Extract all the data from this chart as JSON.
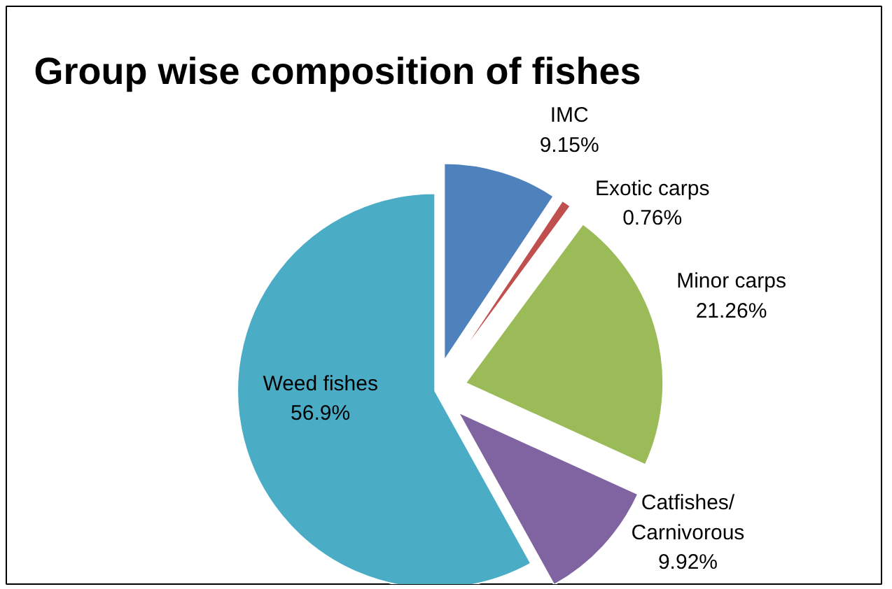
{
  "chart_data": {
    "type": "pie",
    "title": "Group wise composition of fishes",
    "categories": [
      "IMC",
      "Exotic carps",
      "Minor carps",
      "Catfishes/ Carnivorous",
      "Weed fishes"
    ],
    "values": [
      9.15,
      0.76,
      21.26,
      9.92,
      56.9
    ],
    "value_labels": [
      "9.15%",
      "0.76%",
      "21.26%",
      "9.92%",
      "56.9%"
    ],
    "colors": [
      "#4f81bd",
      "#c0504d",
      "#9bbb59",
      "#8064a2",
      "#4bacc6"
    ]
  }
}
